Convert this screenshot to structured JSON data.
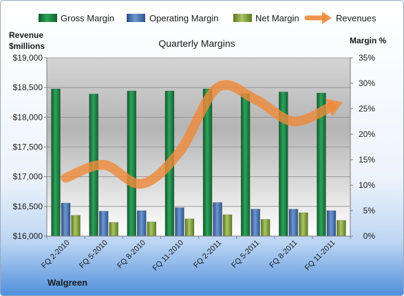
{
  "chart_data": {
    "type": "bar",
    "title": "Quarterly Margins",
    "company": "Walgreen",
    "left_axis_title_line1": "Revenue",
    "left_axis_title_line2": "$millions",
    "right_axis_title": "Margin %",
    "categories": [
      "FQ 2-2010",
      "FQ 5-2010",
      "FQ 8-2010",
      "FQ 11-2010",
      "FQ 2-2011",
      "FQ 5-2011",
      "FQ 8-2011",
      "FQ 11-2011"
    ],
    "left_ticks": [
      "$16,000",
      "$16,500",
      "$17,000",
      "$17,500",
      "$18,000",
      "$18,500",
      "$19,000"
    ],
    "right_ticks": [
      "0%",
      "5%",
      "10%",
      "15%",
      "20%",
      "25%",
      "30%",
      "35%"
    ],
    "ylim_left": [
      16000,
      19000
    ],
    "ylim_right": [
      0,
      35
    ],
    "legend_position": "top",
    "grid": true,
    "series": [
      {
        "name": "Gross Margin",
        "axis": "right",
        "chart": "bar",
        "color": "#1f8a4a",
        "values": [
          28.9,
          27.9,
          28.5,
          28.5,
          28.9,
          28.0,
          28.3,
          28.1
        ]
      },
      {
        "name": "Operating Margin",
        "axis": "right",
        "chart": "bar",
        "color": "#4a78b8",
        "values": [
          6.5,
          4.9,
          5.0,
          5.6,
          6.6,
          5.3,
          5.3,
          5.0
        ]
      },
      {
        "name": "Net Margin",
        "axis": "right",
        "chart": "bar",
        "color": "#8fae45",
        "values": [
          4.1,
          2.7,
          2.8,
          3.4,
          4.2,
          3.3,
          4.6,
          3.1
        ]
      },
      {
        "name": "Revenues",
        "axis": "left",
        "chart": "line",
        "color": "#ee8a3a",
        "values": [
          16980,
          17200,
          16880,
          17420,
          18500,
          18300,
          17930,
          18180
        ]
      }
    ]
  }
}
